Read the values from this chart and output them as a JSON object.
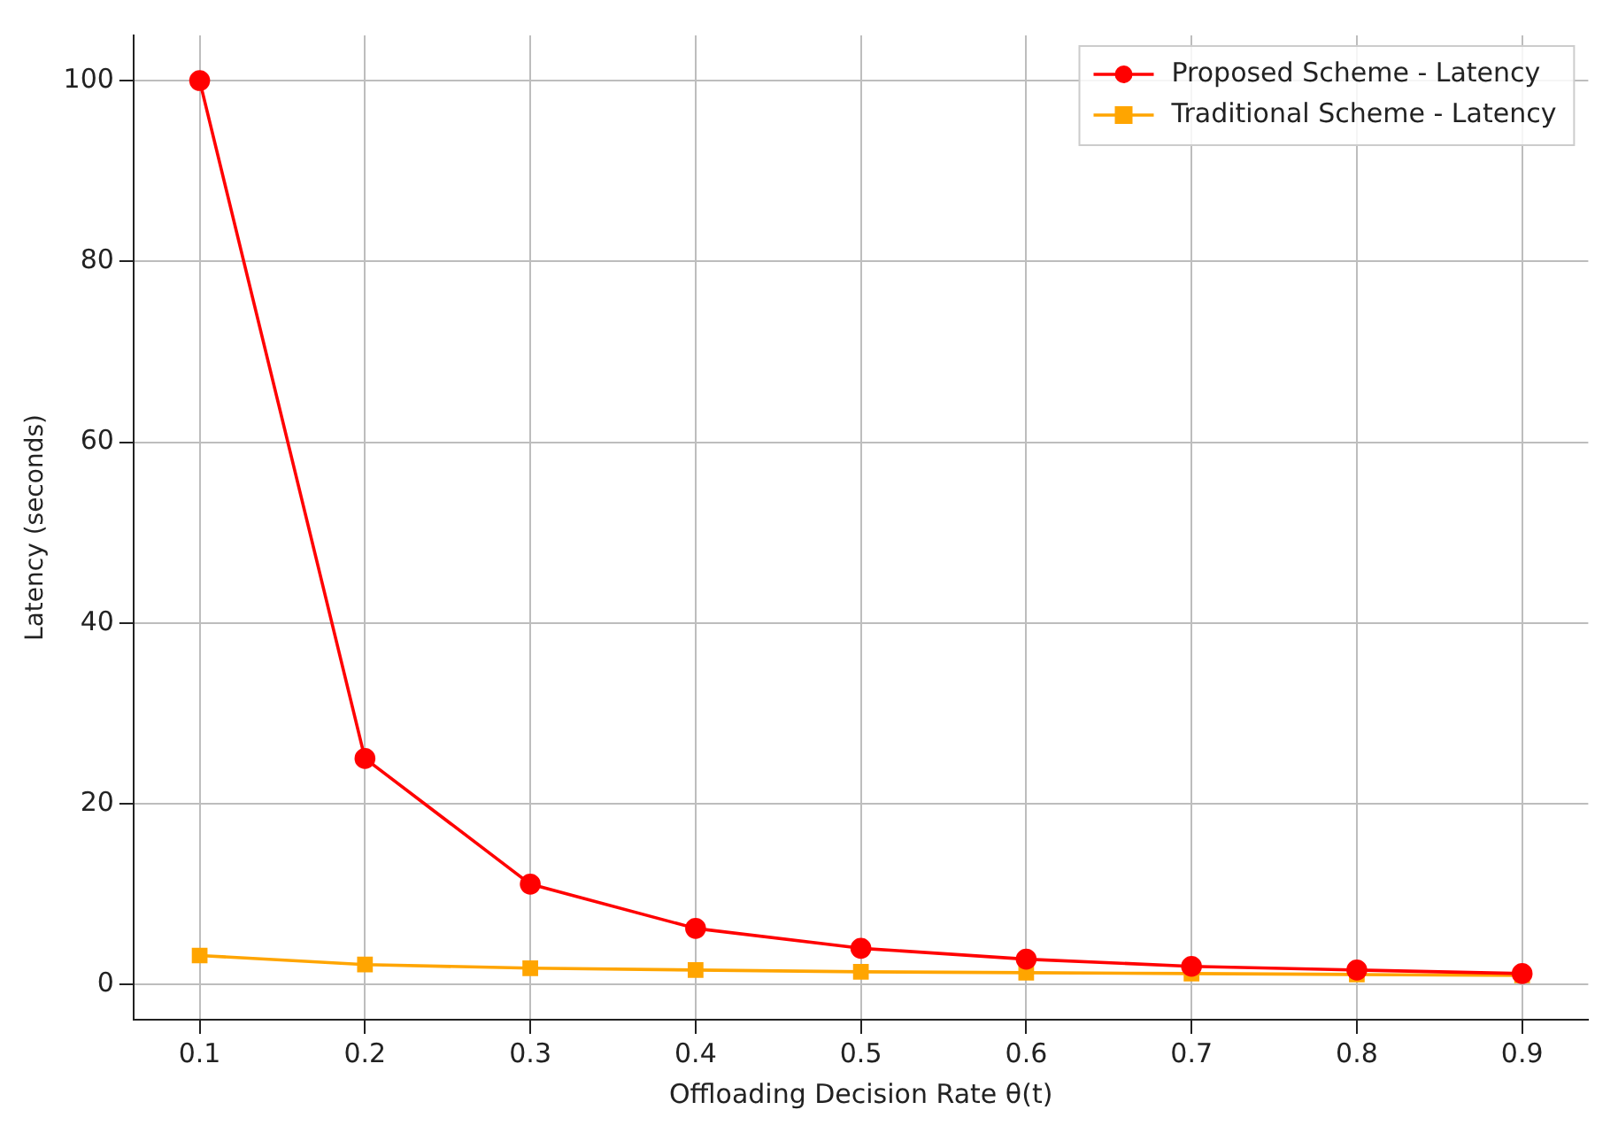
{
  "chart_data": {
    "type": "line",
    "xlabel": "Offloading Decision Rate θ(t)",
    "ylabel": "Latency (seconds)",
    "x": [
      0.1,
      0.2,
      0.3,
      0.4,
      0.5,
      0.6,
      0.7,
      0.8,
      0.9
    ],
    "series": [
      {
        "name": "Proposed Scheme - Latency",
        "color": "#ff0000",
        "marker": "circle",
        "values": [
          100,
          25,
          11.1,
          6.2,
          4,
          2.8,
          2,
          1.6,
          1.2
        ]
      },
      {
        "name": "Traditional Scheme - Latency",
        "color": "#ffa500",
        "marker": "square",
        "values": [
          3.2,
          2.2,
          1.8,
          1.6,
          1.4,
          1.3,
          1.2,
          1.1,
          1
        ]
      }
    ],
    "xlim": [
      0.06,
      0.94
    ],
    "ylim": [
      -3.9,
      105
    ],
    "xticks": [
      0.1,
      0.2,
      0.3,
      0.4,
      0.5,
      0.6,
      0.7,
      0.8,
      0.9
    ],
    "yticks": [
      0,
      20,
      40,
      60,
      80,
      100
    ],
    "grid": true,
    "legend": "top right",
    "line_style": "solid"
  }
}
